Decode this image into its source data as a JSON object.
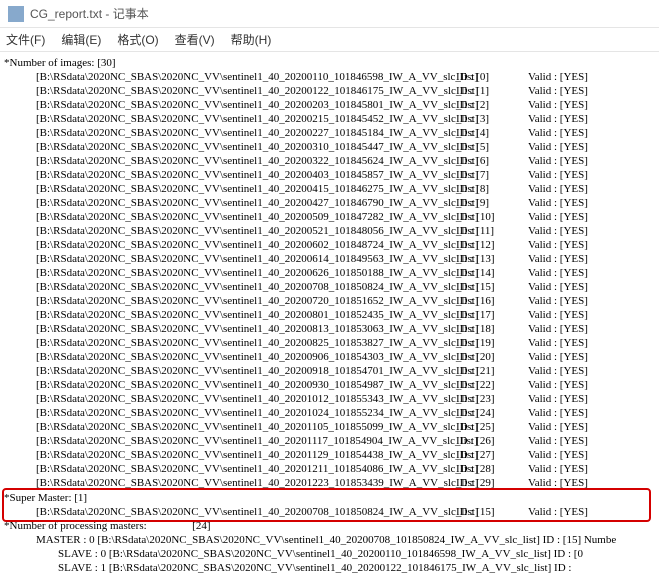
{
  "window": {
    "title": "CG_report.txt - 记事本"
  },
  "menu": {
    "file": "文件(F)",
    "edit": "编辑(E)",
    "format": "格式(O)",
    "view": "查看(V)",
    "help": "帮助(H)"
  },
  "body": {
    "num_images_label": "*Number of images:",
    "num_images_value": "[30]",
    "base_path": "[B:\\RSdata\\2020NC_SBAS\\2020NC_VV\\sentinel1_40_",
    "suffix": "_IW_A_VV_slc_list]",
    "id_prefix": "ID : ",
    "valid_prefix": "Valid : ",
    "valid_yes": "[YES]",
    "rows": [
      {
        "d": "20200110",
        "t": "101846598",
        "id": "[0]"
      },
      {
        "d": "20200122",
        "t": "101846175",
        "id": "[1]"
      },
      {
        "d": "20200203",
        "t": "101845801",
        "id": "[2]"
      },
      {
        "d": "20200215",
        "t": "101845452",
        "id": "[3]"
      },
      {
        "d": "20200227",
        "t": "101845184",
        "id": "[4]"
      },
      {
        "d": "20200310",
        "t": "101845447",
        "id": "[5]"
      },
      {
        "d": "20200322",
        "t": "101845624",
        "id": "[6]"
      },
      {
        "d": "20200403",
        "t": "101845857",
        "id": "[7]"
      },
      {
        "d": "20200415",
        "t": "101846275",
        "id": "[8]"
      },
      {
        "d": "20200427",
        "t": "101846790",
        "id": "[9]"
      },
      {
        "d": "20200509",
        "t": "101847282",
        "id": "[10]"
      },
      {
        "d": "20200521",
        "t": "101848056",
        "id": "[11]"
      },
      {
        "d": "20200602",
        "t": "101848724",
        "id": "[12]"
      },
      {
        "d": "20200614",
        "t": "101849563",
        "id": "[13]"
      },
      {
        "d": "20200626",
        "t": "101850188",
        "id": "[14]"
      },
      {
        "d": "20200708",
        "t": "101850824",
        "id": "[15]"
      },
      {
        "d": "20200720",
        "t": "101851652",
        "id": "[16]"
      },
      {
        "d": "20200801",
        "t": "101852435",
        "id": "[17]"
      },
      {
        "d": "20200813",
        "t": "101853063",
        "id": "[18]"
      },
      {
        "d": "20200825",
        "t": "101853827",
        "id": "[19]"
      },
      {
        "d": "20200906",
        "t": "101854303",
        "id": "[20]"
      },
      {
        "d": "20200918",
        "t": "101854701",
        "id": "[21]"
      },
      {
        "d": "20200930",
        "t": "101854987",
        "id": "[22]"
      },
      {
        "d": "20201012",
        "t": "101855343",
        "id": "[23]"
      },
      {
        "d": "20201024",
        "t": "101855234",
        "id": "[24]"
      },
      {
        "d": "20201105",
        "t": "101855099",
        "id": "[25]"
      },
      {
        "d": "20201117",
        "t": "101854904",
        "id": "[26]"
      },
      {
        "d": "20201129",
        "t": "101854438",
        "id": "[27]"
      },
      {
        "d": "20201211",
        "t": "101854086",
        "id": "[28]"
      },
      {
        "d": "20201223",
        "t": "101853439",
        "id": "[29]"
      }
    ],
    "super_master_label": "*Super Master:",
    "super_master_count": "[1]",
    "super_master_row": {
      "d": "20200708",
      "t": "101850824",
      "id": "[15]"
    },
    "num_proc_label": "*Number of processing masters:",
    "num_proc_value": "[24]",
    "master0": "MASTER : 0 [B:\\RSdata\\2020NC_SBAS\\2020NC_VV\\sentinel1_40_20200708_101850824_IW_A_VV_slc_list]  ID : [15]   Numbe",
    "slave0": "SLAVE : 0 [B:\\RSdata\\2020NC_SBAS\\2020NC_VV\\sentinel1_40_20200110_101846598_IW_A_VV_slc_list]   ID : [0",
    "slave1": "SLAVE : 1 [B:\\RSdata\\2020NC_SBAS\\2020NC_VV\\sentinel1_40_20200122_101846175_IW_A_VV_slc_list]   ID :"
  },
  "style": {
    "highlight_color": "#d40000",
    "text_color": "#000000",
    "bg_color": "#ffffff"
  }
}
